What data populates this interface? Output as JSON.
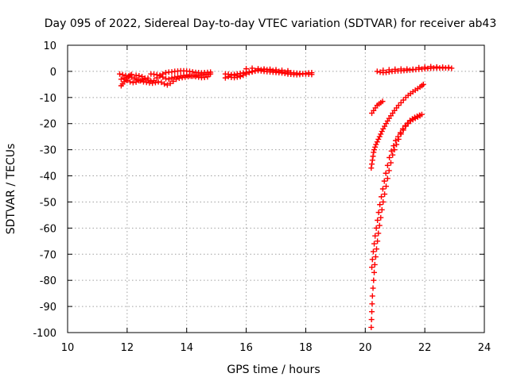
{
  "chart_data": {
    "type": "scatter",
    "title": "Day 095 of 2022, Sidereal Day-to-day VTEC variation (SDTVAR) for receiver ab43",
    "xlabel": "GPS time / hours",
    "ylabel": "SDTVAR / TECUs",
    "xlim": [
      10,
      24
    ],
    "ylim": [
      -100,
      10
    ],
    "xticks": [
      "10",
      "12",
      "14",
      "16",
      "18",
      "20",
      "22",
      "24"
    ],
    "yticks": [
      "10",
      "0",
      "-10",
      "-20",
      "-30",
      "-40",
      "-50",
      "-60",
      "-70",
      "-80",
      "-90",
      "-100"
    ],
    "grid": true,
    "marker": "plus",
    "color": "#ff0000",
    "series": [
      {
        "points": [
          [
            11.8,
            -5.5
          ],
          [
            11.85,
            -4.8
          ],
          [
            11.9,
            -4.0
          ],
          [
            11.95,
            -3.2
          ],
          [
            12.0,
            -2.5
          ],
          [
            12.05,
            -2.0
          ],
          [
            12.1,
            -1.5
          ],
          [
            12.15,
            -1.2
          ],
          [
            11.75,
            -1.0
          ],
          [
            11.85,
            -1.3
          ],
          [
            11.95,
            -1.6
          ],
          [
            12.05,
            -1.8
          ],
          [
            12.15,
            -2.2
          ],
          [
            12.25,
            -2.8
          ],
          [
            12.35,
            -3.2
          ],
          [
            12.45,
            -3.6
          ],
          [
            12.55,
            -4.0
          ],
          [
            12.65,
            -4.2
          ],
          [
            12.75,
            -4.4
          ],
          [
            12.85,
            -4.5
          ],
          [
            12.95,
            -4.3
          ],
          [
            13.05,
            -4.0
          ],
          [
            13.15,
            -4.2
          ],
          [
            13.25,
            -4.8
          ],
          [
            13.35,
            -5.2
          ],
          [
            13.45,
            -4.6
          ],
          [
            13.55,
            -3.8
          ],
          [
            13.65,
            -3.0
          ],
          [
            13.75,
            -2.6
          ],
          [
            13.85,
            -2.4
          ],
          [
            13.95,
            -2.2
          ],
          [
            14.05,
            -2.0
          ],
          [
            14.15,
            -1.8
          ],
          [
            14.25,
            -1.6
          ],
          [
            14.35,
            -1.5
          ],
          [
            14.45,
            -1.4
          ],
          [
            14.55,
            -1.3
          ],
          [
            14.65,
            -1.2
          ],
          [
            14.75,
            -1.1
          ],
          [
            14.8,
            -1.0
          ],
          [
            12.3,
            -1.5
          ],
          [
            12.4,
            -1.7
          ],
          [
            12.5,
            -2.0
          ],
          [
            12.6,
            -2.6
          ],
          [
            12.7,
            -3.3
          ],
          [
            12.8,
            -3.8
          ],
          [
            12.9,
            -3.5
          ],
          [
            13.0,
            -2.5
          ],
          [
            13.1,
            -1.8
          ],
          [
            13.2,
            -1.0
          ],
          [
            13.3,
            -0.5
          ],
          [
            13.4,
            -0.3
          ],
          [
            13.5,
            -0.2
          ],
          [
            13.6,
            0.0
          ],
          [
            13.7,
            0.1
          ],
          [
            13.8,
            0.2
          ],
          [
            13.9,
            0.2
          ],
          [
            14.0,
            0.1
          ],
          [
            14.1,
            0.0
          ],
          [
            14.2,
            -0.2
          ],
          [
            14.3,
            -0.4
          ],
          [
            14.4,
            -0.5
          ],
          [
            14.5,
            -0.6
          ],
          [
            14.6,
            -0.5
          ],
          [
            14.7,
            -0.4
          ],
          [
            14.8,
            -0.3
          ],
          [
            12.8,
            -1.0
          ],
          [
            12.9,
            -1.1
          ],
          [
            13.0,
            -1.3
          ],
          [
            13.1,
            -1.5
          ],
          [
            13.2,
            -2.2
          ],
          [
            13.3,
            -2.8
          ],
          [
            13.4,
            -3.0
          ],
          [
            13.5,
            -2.5
          ],
          [
            13.6,
            -2.2
          ],
          [
            13.7,
            -2.0
          ],
          [
            13.8,
            -1.8
          ],
          [
            13.9,
            -1.6
          ],
          [
            14.0,
            -1.5
          ],
          [
            14.1,
            -1.6
          ],
          [
            14.2,
            -1.8
          ],
          [
            14.3,
            -2.0
          ],
          [
            14.4,
            -2.2
          ],
          [
            14.5,
            -2.4
          ],
          [
            14.6,
            -2.3
          ],
          [
            14.7,
            -2.1
          ],
          [
            11.8,
            -3.0
          ],
          [
            11.9,
            -2.6
          ],
          [
            12.0,
            -3.5
          ],
          [
            12.1,
            -4.0
          ],
          [
            12.2,
            -4.3
          ],
          [
            12.3,
            -4.1
          ],
          [
            12.4,
            -3.6
          ],
          [
            12.5,
            -3.2
          ],
          [
            12.6,
            -2.8
          ],
          [
            12.7,
            -2.6
          ]
        ]
      },
      {
        "points": [
          [
            15.3,
            -2.5
          ],
          [
            15.4,
            -2.0
          ],
          [
            15.5,
            -1.5
          ],
          [
            15.6,
            -1.2
          ],
          [
            15.7,
            -1.0
          ],
          [
            15.8,
            -0.8
          ],
          [
            15.9,
            -0.6
          ],
          [
            16.0,
            -0.4
          ],
          [
            16.1,
            -0.2
          ],
          [
            16.2,
            0.0
          ],
          [
            16.3,
            0.3
          ],
          [
            16.4,
            0.5
          ],
          [
            16.5,
            0.6
          ],
          [
            16.6,
            0.7
          ],
          [
            16.7,
            0.6
          ],
          [
            16.8,
            0.5
          ],
          [
            16.9,
            0.3
          ],
          [
            17.0,
            0.1
          ],
          [
            17.1,
            0.0
          ],
          [
            17.2,
            -0.2
          ],
          [
            17.3,
            -0.3
          ],
          [
            17.4,
            -0.4
          ],
          [
            17.5,
            -0.5
          ],
          [
            17.6,
            -0.6
          ],
          [
            17.7,
            -0.7
          ],
          [
            17.8,
            -0.8
          ],
          [
            17.9,
            -0.9
          ],
          [
            18.0,
            -1.0
          ],
          [
            18.1,
            -1.1
          ],
          [
            18.2,
            -1.2
          ],
          [
            15.3,
            -1.0
          ],
          [
            15.4,
            -1.1
          ],
          [
            15.5,
            -1.3
          ],
          [
            15.6,
            -1.5
          ],
          [
            15.7,
            -1.6
          ],
          [
            15.8,
            -1.7
          ],
          [
            15.9,
            -1.5
          ],
          [
            16.0,
            -1.0
          ],
          [
            16.1,
            -0.5
          ],
          [
            16.2,
            -0.2
          ],
          [
            16.3,
            0.1
          ],
          [
            16.4,
            0.3
          ],
          [
            16.5,
            0.2
          ],
          [
            16.6,
            0.0
          ],
          [
            16.7,
            -0.1
          ],
          [
            16.8,
            -0.2
          ],
          [
            16.9,
            -0.3
          ],
          [
            17.0,
            -0.4
          ],
          [
            17.1,
            -0.5
          ],
          [
            17.2,
            -0.6
          ],
          [
            17.3,
            -0.8
          ],
          [
            17.4,
            -1.0
          ],
          [
            17.5,
            -1.1
          ],
          [
            17.6,
            -1.2
          ],
          [
            17.7,
            -1.3
          ],
          [
            17.8,
            -1.2
          ],
          [
            17.9,
            -1.0
          ],
          [
            18.0,
            -0.8
          ],
          [
            18.1,
            -0.6
          ],
          [
            18.2,
            -0.5
          ],
          [
            15.5,
            -2.3
          ],
          [
            15.6,
            -2.4
          ],
          [
            15.7,
            -2.2
          ],
          [
            15.8,
            -2.0
          ],
          [
            16.0,
            1.0
          ],
          [
            16.2,
            1.2
          ],
          [
            16.4,
            1.0
          ],
          [
            16.6,
            0.9
          ],
          [
            16.8,
            0.8
          ],
          [
            17.0,
            0.6
          ],
          [
            17.2,
            0.4
          ],
          [
            17.4,
            0.2
          ]
        ]
      },
      {
        "points": [
          [
            20.4,
            0.0
          ],
          [
            20.5,
            -0.3
          ],
          [
            20.6,
            -0.5
          ],
          [
            20.7,
            -0.4
          ],
          [
            20.8,
            -0.2
          ],
          [
            20.9,
            0.0
          ],
          [
            21.0,
            0.1
          ],
          [
            21.1,
            0.2
          ],
          [
            21.2,
            0.2
          ],
          [
            21.3,
            0.3
          ],
          [
            21.4,
            0.4
          ],
          [
            21.5,
            0.5
          ],
          [
            21.6,
            0.6
          ],
          [
            21.7,
            0.7
          ],
          [
            21.8,
            0.8
          ],
          [
            21.9,
            0.9
          ],
          [
            22.0,
            1.0
          ],
          [
            22.1,
            1.1
          ],
          [
            22.2,
            1.2
          ],
          [
            22.3,
            1.3
          ],
          [
            22.4,
            1.3
          ],
          [
            22.5,
            1.3
          ],
          [
            22.6,
            1.3
          ],
          [
            22.7,
            1.3
          ],
          [
            22.8,
            1.3
          ],
          [
            22.9,
            1.2
          ],
          [
            20.6,
            0.4
          ],
          [
            20.8,
            0.6
          ],
          [
            21.0,
            0.8
          ],
          [
            21.2,
            0.9
          ],
          [
            21.4,
            0.9
          ],
          [
            21.6,
            0.8
          ],
          [
            21.8,
            1.4
          ],
          [
            22.0,
            1.6
          ],
          [
            22.2,
            1.8
          ],
          [
            22.4,
            1.7
          ],
          [
            22.6,
            1.6
          ],
          [
            22.8,
            1.5
          ]
        ]
      },
      {
        "points": [
          [
            20.22,
            -16.0
          ],
          [
            20.28,
            -15.0
          ],
          [
            20.34,
            -14.0
          ],
          [
            20.4,
            -13.0
          ],
          [
            20.46,
            -12.5
          ],
          [
            20.52,
            -12.0
          ],
          [
            20.58,
            -11.5
          ],
          [
            20.2,
            -37.0
          ],
          [
            20.22,
            -35.5
          ],
          [
            20.24,
            -34.0
          ],
          [
            20.26,
            -32.5
          ],
          [
            20.28,
            -31.0
          ],
          [
            20.3,
            -30.0
          ],
          [
            20.33,
            -29.0
          ],
          [
            20.36,
            -28.0
          ],
          [
            20.4,
            -27.0
          ],
          [
            20.44,
            -26.0
          ],
          [
            20.48,
            -25.0
          ],
          [
            20.52,
            -24.0
          ],
          [
            20.56,
            -23.0
          ],
          [
            20.6,
            -22.0
          ],
          [
            20.65,
            -21.0
          ],
          [
            20.7,
            -20.0
          ],
          [
            20.75,
            -19.0
          ],
          [
            20.8,
            -18.0
          ],
          [
            20.86,
            -17.0
          ],
          [
            20.92,
            -16.0
          ],
          [
            20.98,
            -15.0
          ],
          [
            21.05,
            -14.0
          ],
          [
            21.12,
            -13.0
          ],
          [
            21.2,
            -12.0
          ],
          [
            21.28,
            -11.0
          ],
          [
            21.36,
            -10.0
          ],
          [
            21.44,
            -9.2
          ],
          [
            21.52,
            -8.5
          ],
          [
            21.6,
            -7.8
          ],
          [
            21.68,
            -7.2
          ],
          [
            21.76,
            -6.6
          ],
          [
            21.84,
            -6.0
          ],
          [
            21.9,
            -5.5
          ],
          [
            21.95,
            -5.0
          ]
        ]
      },
      {
        "points": [
          [
            20.2,
            -98.0
          ],
          [
            20.21,
            -95.0
          ],
          [
            20.22,
            -92.0
          ],
          [
            20.23,
            -89.0
          ],
          [
            20.24,
            -86.0
          ],
          [
            20.26,
            -83.0
          ],
          [
            20.28,
            -80.0
          ],
          [
            20.3,
            -77.0
          ],
          [
            20.32,
            -74.0
          ],
          [
            20.35,
            -71.0
          ],
          [
            20.38,
            -68.0
          ],
          [
            20.41,
            -65.0
          ],
          [
            20.44,
            -62.0
          ],
          [
            20.48,
            -59.0
          ],
          [
            20.52,
            -56.0
          ],
          [
            20.56,
            -53.0
          ],
          [
            20.6,
            -50.0
          ],
          [
            20.65,
            -47.0
          ],
          [
            20.7,
            -44.0
          ],
          [
            20.75,
            -41.0
          ],
          [
            20.8,
            -38.0
          ],
          [
            20.86,
            -35.0
          ],
          [
            20.92,
            -32.0
          ],
          [
            20.98,
            -30.0
          ],
          [
            21.05,
            -28.0
          ],
          [
            21.12,
            -26.0
          ],
          [
            21.2,
            -24.0
          ],
          [
            21.28,
            -22.5
          ],
          [
            21.36,
            -21.0
          ],
          [
            21.44,
            -20.0
          ],
          [
            21.52,
            -19.0
          ],
          [
            21.6,
            -18.5
          ],
          [
            21.68,
            -18.0
          ],
          [
            21.76,
            -17.5
          ],
          [
            21.84,
            -17.0
          ],
          [
            20.22,
            -75.0
          ],
          [
            20.24,
            -72.0
          ],
          [
            20.27,
            -69.0
          ],
          [
            20.3,
            -66.0
          ],
          [
            20.33,
            -63.0
          ],
          [
            20.37,
            -60.0
          ],
          [
            20.41,
            -57.0
          ],
          [
            20.45,
            -54.0
          ],
          [
            20.49,
            -51.0
          ],
          [
            20.54,
            -48.0
          ],
          [
            20.59,
            -45.0
          ],
          [
            20.64,
            -42.0
          ],
          [
            20.69,
            -39.0
          ],
          [
            20.75,
            -36.0
          ],
          [
            20.81,
            -33.0
          ],
          [
            20.88,
            -30.5
          ],
          [
            20.95,
            -28.5
          ],
          [
            21.02,
            -26.5
          ],
          [
            21.1,
            -25.0
          ],
          [
            21.18,
            -23.5
          ],
          [
            21.26,
            -22.0
          ],
          [
            21.34,
            -20.8
          ],
          [
            21.42,
            -19.8
          ],
          [
            21.5,
            -18.8
          ],
          [
            21.58,
            -18.2
          ],
          [
            21.66,
            -17.6
          ],
          [
            21.74,
            -17.2
          ],
          [
            21.82,
            -16.8
          ],
          [
            21.9,
            -16.5
          ]
        ]
      }
    ]
  }
}
